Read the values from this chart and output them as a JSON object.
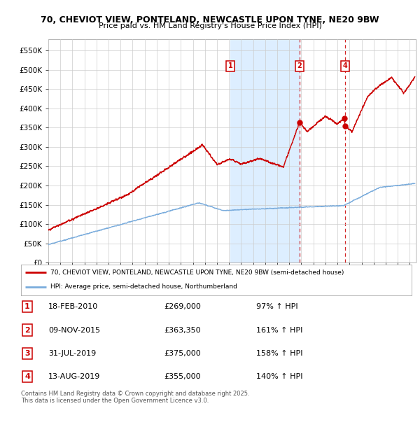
{
  "title_line1": "70, CHEVIOT VIEW, PONTELAND, NEWCASTLE UPON TYNE, NE20 9BW",
  "title_line2": "Price paid vs. HM Land Registry's House Price Index (HPI)",
  "xlim_start": 1995.0,
  "xlim_end": 2025.5,
  "ylim": [
    0,
    580000
  ],
  "yticks": [
    0,
    50000,
    100000,
    150000,
    200000,
    250000,
    300000,
    350000,
    400000,
    450000,
    500000,
    550000
  ],
  "ytick_labels": [
    "£0",
    "£50K",
    "£100K",
    "£150K",
    "£200K",
    "£250K",
    "£300K",
    "£350K",
    "£400K",
    "£450K",
    "£500K",
    "£550K"
  ],
  "red_line_color": "#cc0000",
  "blue_line_color": "#7aacdc",
  "highlight_color": "#ddeeff",
  "transaction_markers": [
    {
      "t": 2010.12,
      "price": 269000,
      "label": "1",
      "show_band": true,
      "show_dash": false
    },
    {
      "t": 2015.85,
      "price": 363350,
      "label": "2",
      "show_band": false,
      "show_dash": true
    },
    {
      "t": 2019.58,
      "price": 375000,
      "label": "3",
      "show_band": false,
      "show_dash": false
    },
    {
      "t": 2019.62,
      "price": 355000,
      "label": "4",
      "show_band": false,
      "show_dash": true
    }
  ],
  "legend_entries": [
    {
      "label": "70, CHEVIOT VIEW, PONTELAND, NEWCASTLE UPON TYNE, NE20 9BW (semi-detached house)",
      "color": "#cc0000"
    },
    {
      "label": "HPI: Average price, semi-detached house, Northumberland",
      "color": "#7aacdc"
    }
  ],
  "table_rows": [
    {
      "num": "1",
      "date": "18-FEB-2010",
      "price": "£269,000",
      "hpi": "97% ↑ HPI"
    },
    {
      "num": "2",
      "date": "09-NOV-2015",
      "price": "£363,350",
      "hpi": "161% ↑ HPI"
    },
    {
      "num": "3",
      "date": "31-JUL-2019",
      "price": "£375,000",
      "hpi": "158% ↑ HPI"
    },
    {
      "num": "4",
      "date": "13-AUG-2019",
      "price": "£355,000",
      "hpi": "140% ↑ HPI"
    }
  ],
  "footnote": "Contains HM Land Registry data © Crown copyright and database right 2025.\nThis data is licensed under the Open Government Licence v3.0.",
  "background_color": "#ffffff",
  "grid_color": "#cccccc"
}
